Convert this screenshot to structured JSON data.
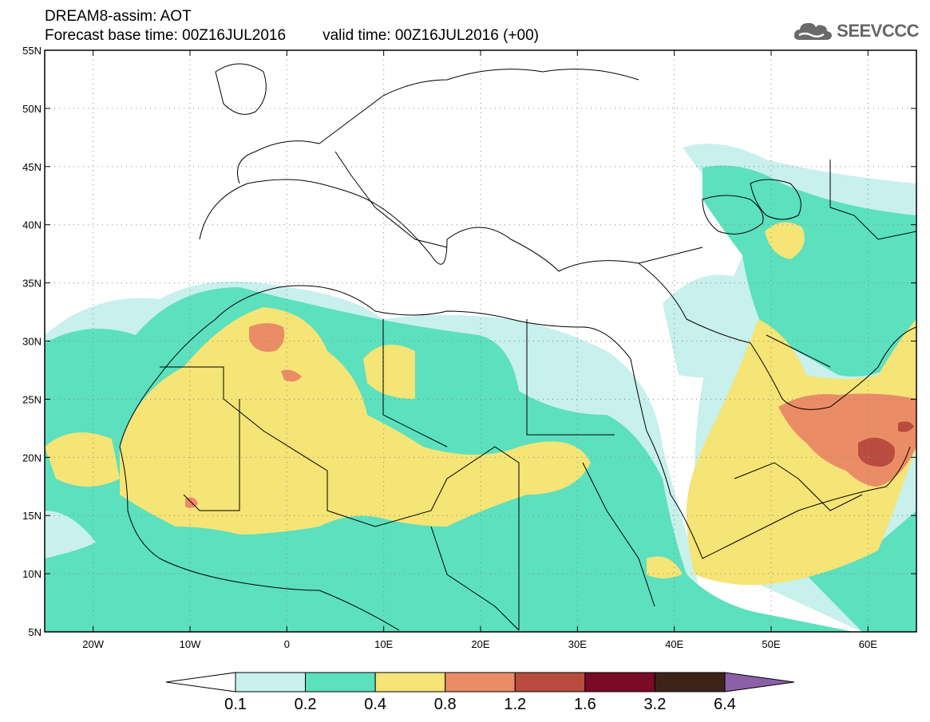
{
  "header": {
    "title_line1": "DREAM8-assim: AOT",
    "base_time": "Forecast base time: 00Z16JUL2016",
    "valid_time": "valid time: 00Z16JUL2016 (+00)"
  },
  "logo": {
    "text": "SEEVCCC",
    "icon": "cloud-icon"
  },
  "map": {
    "latitude_labels": [
      "55N",
      "50N",
      "45N",
      "40N",
      "35N",
      "30N",
      "25N",
      "20N",
      "15N",
      "10N",
      "5N"
    ],
    "longitude_labels": [
      "20W",
      "10W",
      "0",
      "10E",
      "20E",
      "30E",
      "40E",
      "50E",
      "60E"
    ],
    "lon_range": [
      -25,
      65
    ],
    "lat_range": [
      5,
      55
    ],
    "grid": true
  },
  "colorbar": {
    "labels": [
      "0.1",
      "0.2",
      "0.4",
      "0.8",
      "1.2",
      "1.6",
      "3.2",
      "6.4"
    ],
    "colors": [
      "#ffffff",
      "#c8f0ec",
      "#5ce0be",
      "#f5e476",
      "#ea8c66",
      "#b94c3e",
      "#7a0a26",
      "#3e2418",
      "#8c60a8"
    ]
  }
}
